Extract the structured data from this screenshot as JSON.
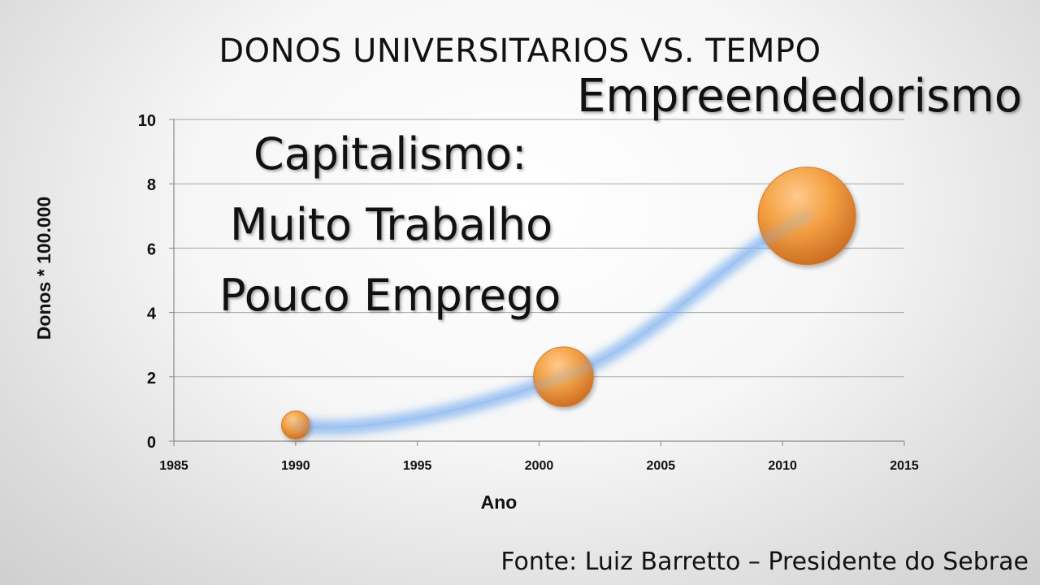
{
  "slide": {
    "title": "DONOS UNIVERSITARIOS VS. TEMPO",
    "headline": "Empreendedorismo",
    "caption_lines": [
      "Capitalismo:",
      "Muito Trabalho",
      "Pouco Emprego"
    ],
    "source": "Fonte: Luiz Barretto – Presidente do Sebrae"
  },
  "colors": {
    "bubble": "#f39a35",
    "trendline": "#6fa8f0",
    "gridline": "#a6a6a6",
    "text": "#111111"
  },
  "chart_data": {
    "type": "scatter",
    "variant": "bubble",
    "title": "",
    "xlabel": "Ano",
    "ylabel": "Donos * 100.000",
    "xlim": [
      1985,
      2015
    ],
    "ylim": [
      0,
      10
    ],
    "x_ticks": [
      "1985",
      "1990",
      "1995",
      "2000",
      "2005",
      "2010",
      "2015"
    ],
    "y_ticks": [
      "0",
      "2",
      "4",
      "6",
      "8",
      "10"
    ],
    "grid": true,
    "legend": "none",
    "trendline": "smooth exponential-like curve through the points",
    "points": [
      {
        "x": 1990,
        "y": 0.5,
        "size": 1
      },
      {
        "x": 2001,
        "y": 2,
        "size": 4.5
      },
      {
        "x": 2011,
        "y": 7,
        "size": 12
      }
    ]
  }
}
